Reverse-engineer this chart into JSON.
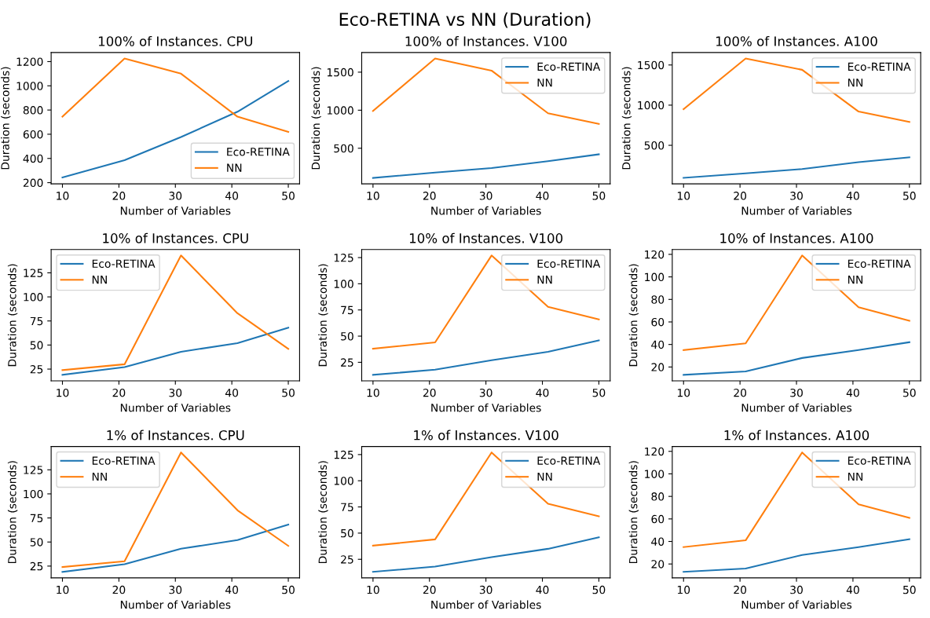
{
  "chart_data": [
    {
      "type": "line",
      "title": "100% of Instances. CPU",
      "annotations": [
        "Eco-RETINA vs NN (Duration)"
      ],
      "xlabel": "Number of Variables",
      "ylabel": "Duration (seconds)",
      "x": [
        10,
        21,
        31,
        41,
        50
      ],
      "xlim": [
        8,
        52
      ],
      "xticks": [
        10,
        20,
        30,
        40,
        50
      ],
      "ylim": [
        190,
        1275
      ],
      "yticks": [
        200,
        400,
        600,
        800,
        1000,
        1200
      ],
      "grid": false,
      "legend": "bottom right",
      "series": [
        {
          "name": "Eco-RETINA",
          "color": "#1f77b4",
          "values": [
            243,
            385,
            577,
            786,
            1040
          ]
        },
        {
          "name": "NN",
          "color": "#ff7f0e",
          "values": [
            745,
            1225,
            1100,
            745,
            620
          ]
        }
      ]
    },
    {
      "type": "line",
      "title": "100% of Instances. V100",
      "xlabel": "Number of Variables",
      "ylabel": "Duration (seconds)",
      "x": [
        10,
        21,
        31,
        41,
        50
      ],
      "xlim": [
        8,
        52
      ],
      "xticks": [
        10,
        20,
        30,
        40,
        50
      ],
      "ylim": [
        32,
        1758
      ],
      "yticks": [
        500,
        1000,
        1500
      ],
      "grid": false,
      "legend": "top right",
      "series": [
        {
          "name": "Eco-RETINA",
          "color": "#1f77b4",
          "values": [
            110,
            180,
            240,
            330,
            420
          ]
        },
        {
          "name": "NN",
          "color": "#ff7f0e",
          "values": [
            990,
            1680,
            1520,
            960,
            820
          ]
        }
      ]
    },
    {
      "type": "line",
      "title": "100% of Instances. A100",
      "xlabel": "Number of Variables",
      "ylabel": "Duration (seconds)",
      "x": [
        10,
        21,
        31,
        41,
        50
      ],
      "xlim": [
        8,
        52
      ],
      "xticks": [
        10,
        20,
        30,
        40,
        50
      ],
      "ylim": [
        20,
        1655
      ],
      "yticks": [
        500,
        1000,
        1500
      ],
      "grid": false,
      "legend": "top right",
      "series": [
        {
          "name": "Eco-RETINA",
          "color": "#1f77b4",
          "values": [
            95,
            150,
            205,
            290,
            350
          ]
        },
        {
          "name": "NN",
          "color": "#ff7f0e",
          "values": [
            950,
            1580,
            1440,
            920,
            790
          ]
        }
      ]
    },
    {
      "type": "line",
      "title": "10% of Instances. CPU",
      "xlabel": "Number of Variables",
      "ylabel": "Duration (seconds)",
      "x": [
        10,
        21,
        31,
        41,
        50
      ],
      "xlim": [
        8,
        52
      ],
      "xticks": [
        10,
        20,
        30,
        40,
        50
      ],
      "ylim": [
        12.8,
        149.2
      ],
      "yticks": [
        25,
        50,
        75,
        100,
        125
      ],
      "grid": false,
      "legend": "top left",
      "series": [
        {
          "name": "Eco-RETINA",
          "color": "#1f77b4",
          "values": [
            19,
            27,
            43,
            52,
            68
          ]
        },
        {
          "name": "NN",
          "color": "#ff7f0e",
          "values": [
            24,
            30,
            143,
            83,
            46
          ]
        }
      ]
    },
    {
      "type": "line",
      "title": "10% of Instances. V100",
      "xlabel": "Number of Variables",
      "ylabel": "Duration (seconds)",
      "x": [
        10,
        21,
        31,
        41,
        50
      ],
      "xlim": [
        8,
        52
      ],
      "xticks": [
        10,
        20,
        30,
        40,
        50
      ],
      "ylim": [
        7.3,
        132.7
      ],
      "yticks": [
        25,
        50,
        75,
        100,
        125
      ],
      "grid": false,
      "legend": "top right",
      "series": [
        {
          "name": "Eco-RETINA",
          "color": "#1f77b4",
          "values": [
            13,
            18,
            27,
            35,
            46
          ]
        },
        {
          "name": "NN",
          "color": "#ff7f0e",
          "values": [
            38,
            44,
            127,
            78,
            66
          ]
        }
      ]
    },
    {
      "type": "line",
      "title": "10% of Instances. A100",
      "xlabel": "Number of Variables",
      "ylabel": "Duration (seconds)",
      "x": [
        10,
        21,
        31,
        41,
        50
      ],
      "xlim": [
        8,
        52
      ],
      "xticks": [
        10,
        20,
        30,
        40,
        50
      ],
      "ylim": [
        7.7,
        124.3
      ],
      "yticks": [
        20,
        40,
        60,
        80,
        100,
        120
      ],
      "grid": false,
      "legend": "top right",
      "series": [
        {
          "name": "Eco-RETINA",
          "color": "#1f77b4",
          "values": [
            13,
            16,
            28,
            35,
            42
          ]
        },
        {
          "name": "NN",
          "color": "#ff7f0e",
          "values": [
            35,
            41,
            119,
            73,
            61
          ]
        }
      ]
    },
    {
      "type": "line",
      "title": "1% of Instances. CPU",
      "xlabel": "Number of Variables",
      "ylabel": "Duration (seconds)",
      "x": [
        10,
        21,
        31,
        41,
        50
      ],
      "xlim": [
        8,
        52
      ],
      "xticks": [
        10,
        20,
        30,
        40,
        50
      ],
      "ylim": [
        12.8,
        149.2
      ],
      "yticks": [
        25,
        50,
        75,
        100,
        125
      ],
      "grid": false,
      "legend": "top left",
      "series": [
        {
          "name": "Eco-RETINA",
          "color": "#1f77b4",
          "values": [
            19,
            27,
            43,
            52,
            68
          ]
        },
        {
          "name": "NN",
          "color": "#ff7f0e",
          "values": [
            24,
            30,
            143,
            83,
            46
          ]
        }
      ]
    },
    {
      "type": "line",
      "title": "1% of Instances. V100",
      "xlabel": "Number of Variables",
      "ylabel": "Duration (seconds)",
      "x": [
        10,
        21,
        31,
        41,
        50
      ],
      "xlim": [
        8,
        52
      ],
      "xticks": [
        10,
        20,
        30,
        40,
        50
      ],
      "ylim": [
        7.3,
        132.7
      ],
      "yticks": [
        25,
        50,
        75,
        100,
        125
      ],
      "grid": false,
      "legend": "top right",
      "series": [
        {
          "name": "Eco-RETINA",
          "color": "#1f77b4",
          "values": [
            13,
            18,
            27,
            35,
            46
          ]
        },
        {
          "name": "NN",
          "color": "#ff7f0e",
          "values": [
            38,
            44,
            127,
            78,
            66
          ]
        }
      ]
    },
    {
      "type": "line",
      "title": "1% of Instances. A100",
      "xlabel": "Number of Variables",
      "ylabel": "Duration (seconds)",
      "x": [
        10,
        21,
        31,
        41,
        50
      ],
      "xlim": [
        8,
        52
      ],
      "xticks": [
        10,
        20,
        30,
        40,
        50
      ],
      "ylim": [
        7.7,
        124.3
      ],
      "yticks": [
        20,
        40,
        60,
        80,
        100,
        120
      ],
      "grid": false,
      "legend": "top right",
      "series": [
        {
          "name": "Eco-RETINA",
          "color": "#1f77b4",
          "values": [
            13,
            16,
            28,
            35,
            42
          ]
        },
        {
          "name": "NN",
          "color": "#ff7f0e",
          "values": [
            35,
            41,
            119,
            73,
            61
          ]
        }
      ]
    }
  ]
}
